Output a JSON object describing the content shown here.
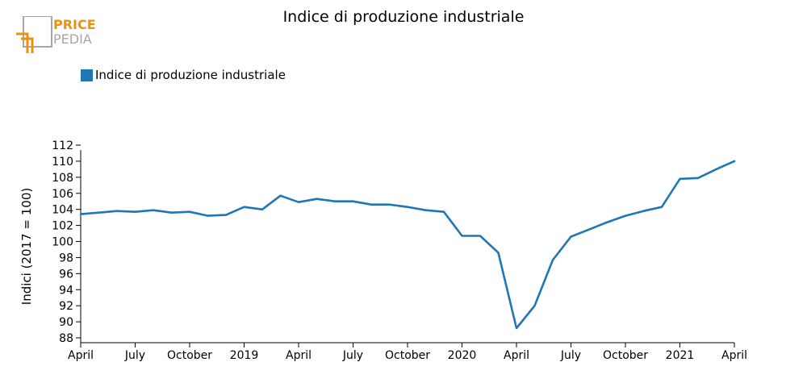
{
  "logo": {
    "line1": "PRICE",
    "line2": "PEDIA",
    "accent_color": "#e8920f",
    "gray_color": "#a6a6a6"
  },
  "chart_data": {
    "type": "line",
    "title": "Indice di produzione industriale",
    "ylabel": "Indici (2017 = 100)",
    "xlabel": "",
    "ylim": [
      88,
      112
    ],
    "yticks": [
      88,
      90,
      92,
      94,
      96,
      98,
      100,
      102,
      104,
      106,
      108,
      110,
      112
    ],
    "xlim": [
      0,
      36
    ],
    "xticks": [
      {
        "x": 0,
        "label": "April"
      },
      {
        "x": 3,
        "label": "July"
      },
      {
        "x": 6,
        "label": "October"
      },
      {
        "x": 9,
        "label": "2019"
      },
      {
        "x": 12,
        "label": "April"
      },
      {
        "x": 15,
        "label": "July"
      },
      {
        "x": 18,
        "label": "October"
      },
      {
        "x": 21,
        "label": "2020"
      },
      {
        "x": 24,
        "label": "April"
      },
      {
        "x": 27,
        "label": "July"
      },
      {
        "x": 30,
        "label": "October"
      },
      {
        "x": 33,
        "label": "2021"
      },
      {
        "x": 36,
        "label": "April"
      }
    ],
    "legend_position": "top-left",
    "grid": false,
    "series": [
      {
        "name": "Indice di produzione industriale",
        "color": "#1f77b4",
        "x": [
          0,
          1,
          2,
          3,
          4,
          5,
          6,
          7,
          8,
          9,
          10,
          11,
          12,
          13,
          14,
          15,
          16,
          17,
          18,
          19,
          20,
          21,
          22,
          23,
          24,
          25,
          26,
          27,
          28,
          29,
          30,
          31,
          32,
          33,
          34,
          35,
          36
        ],
        "values": [
          103.4,
          103.6,
          103.8,
          103.7,
          103.9,
          103.6,
          103.7,
          103.2,
          103.3,
          104.3,
          104.0,
          105.7,
          104.9,
          105.3,
          105.0,
          105.0,
          104.6,
          104.6,
          104.3,
          103.9,
          103.7,
          100.7,
          100.7,
          98.6,
          89.2,
          92.0,
          97.7,
          100.6,
          101.5,
          102.4,
          103.2,
          103.8,
          104.3,
          107.8,
          107.9,
          109.0,
          110.0
        ]
      }
    ]
  }
}
